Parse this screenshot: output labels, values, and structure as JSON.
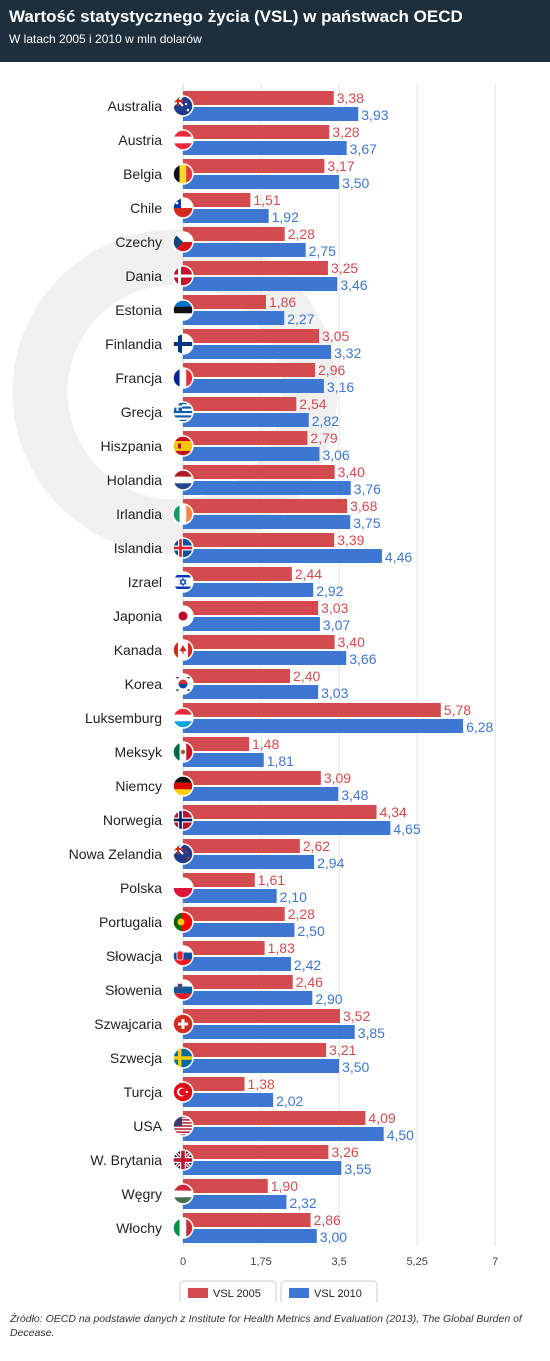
{
  "header": {
    "title": "Wartość statystycznego życia (VSL) w państwach OECD",
    "subtitle": "W latach 2005 i 2010 w mln dolarów"
  },
  "source": "Źródło: OECD na podstawie danych z Institute for Health Metrics and Evaluation (2013), The Global Burden of Decease.",
  "colors": {
    "header_bg": "#1d2f3d",
    "vsl2005": "#d34b4f",
    "vsl2010": "#3d77d1"
  },
  "chart_data": {
    "type": "bar",
    "orientation": "horizontal",
    "title": "Wartość statystycznego życia (VSL) w państwach OECD",
    "subtitle": "W latach 2005 i 2010 w mln dolarów",
    "categories": [
      "Australia",
      "Austria",
      "Belgia",
      "Chile",
      "Czechy",
      "Dania",
      "Estonia",
      "Finlandia",
      "Francja",
      "Grecja",
      "Hiszpania",
      "Holandia",
      "Irlandia",
      "Islandia",
      "Izrael",
      "Japonia",
      "Kanada",
      "Korea",
      "Luksemburg",
      "Meksyk",
      "Niemcy",
      "Norwegia",
      "Nowa Zelandia",
      "Polska",
      "Portugalia",
      "Słowacja",
      "Słowenia",
      "Szwajcaria",
      "Szwecja",
      "Turcja",
      "USA",
      "W. Brytania",
      "Węgry",
      "Włochy"
    ],
    "flags": [
      "australia-flag-icon",
      "austria-flag-icon",
      "belgium-flag-icon",
      "chile-flag-icon",
      "czechia-flag-icon",
      "denmark-flag-icon",
      "estonia-flag-icon",
      "finland-flag-icon",
      "france-flag-icon",
      "greece-flag-icon",
      "spain-flag-icon",
      "netherlands-flag-icon",
      "ireland-flag-icon",
      "iceland-flag-icon",
      "israel-flag-icon",
      "japan-flag-icon",
      "canada-flag-icon",
      "korea-flag-icon",
      "luxembourg-flag-icon",
      "mexico-flag-icon",
      "germany-flag-icon",
      "norway-flag-icon",
      "new-zealand-flag-icon",
      "poland-flag-icon",
      "portugal-flag-icon",
      "slovakia-flag-icon",
      "slovenia-flag-icon",
      "switzerland-flag-icon",
      "sweden-flag-icon",
      "turkey-flag-icon",
      "usa-flag-icon",
      "uk-flag-icon",
      "hungary-flag-icon",
      "italy-flag-icon"
    ],
    "series": [
      {
        "name": "VSL 2005",
        "color": "#d34b4f",
        "values": [
          3.38,
          3.28,
          3.17,
          1.51,
          2.28,
          3.25,
          1.86,
          3.05,
          2.96,
          2.54,
          2.79,
          3.4,
          3.68,
          3.39,
          2.44,
          3.03,
          3.4,
          2.4,
          5.78,
          1.48,
          3.09,
          4.34,
          2.62,
          1.61,
          2.28,
          1.83,
          2.46,
          3.52,
          3.21,
          1.38,
          4.09,
          3.26,
          1.9,
          2.86
        ],
        "labels": [
          "3,38",
          "3,28",
          "3,17",
          "1,51",
          "2,28",
          "3,25",
          "1,86",
          "3,05",
          "2,96",
          "2,54",
          "2,79",
          "3,40",
          "3,68",
          "3,39",
          "2,44",
          "3,03",
          "3,40",
          "2,40",
          "5,78",
          "1,48",
          "3,09",
          "4,34",
          "2,62",
          "1,61",
          "2,28",
          "1,83",
          "2,46",
          "3,52",
          "3,21",
          "1,38",
          "4,09",
          "3,26",
          "1,90",
          "2,86"
        ]
      },
      {
        "name": "VSL 2010",
        "color": "#3d77d1",
        "values": [
          3.93,
          3.67,
          3.5,
          1.92,
          2.75,
          3.46,
          2.27,
          3.32,
          3.16,
          2.82,
          3.06,
          3.76,
          3.75,
          4.46,
          2.92,
          3.07,
          3.66,
          3.03,
          6.28,
          1.81,
          3.48,
          4.65,
          2.94,
          2.1,
          2.5,
          2.42,
          2.9,
          3.85,
          3.5,
          2.02,
          4.5,
          3.55,
          2.32,
          3.0
        ],
        "labels": [
          "3,93",
          "3,67",
          "3,50",
          "1,92",
          "2,75",
          "3,46",
          "2,27",
          "3,32",
          "3,16",
          "2,82",
          "3,06",
          "3,76",
          "3,75",
          "4,46",
          "2,92",
          "3,07",
          "3,66",
          "3,03",
          "6,28",
          "1,81",
          "3,48",
          "4,65",
          "2,94",
          "2,10",
          "2,50",
          "2,42",
          "2,90",
          "3,85",
          "3,50",
          "2,02",
          "4,50",
          "3,55",
          "2,32",
          "3,00"
        ]
      }
    ],
    "xlim": [
      0,
      7
    ],
    "ticks": [
      0,
      1.75,
      3.5,
      5.25,
      7
    ],
    "tick_labels": [
      "0",
      "1,75",
      "3,5",
      "5,25",
      "7"
    ],
    "grid": true,
    "legend_position": "bottom"
  }
}
